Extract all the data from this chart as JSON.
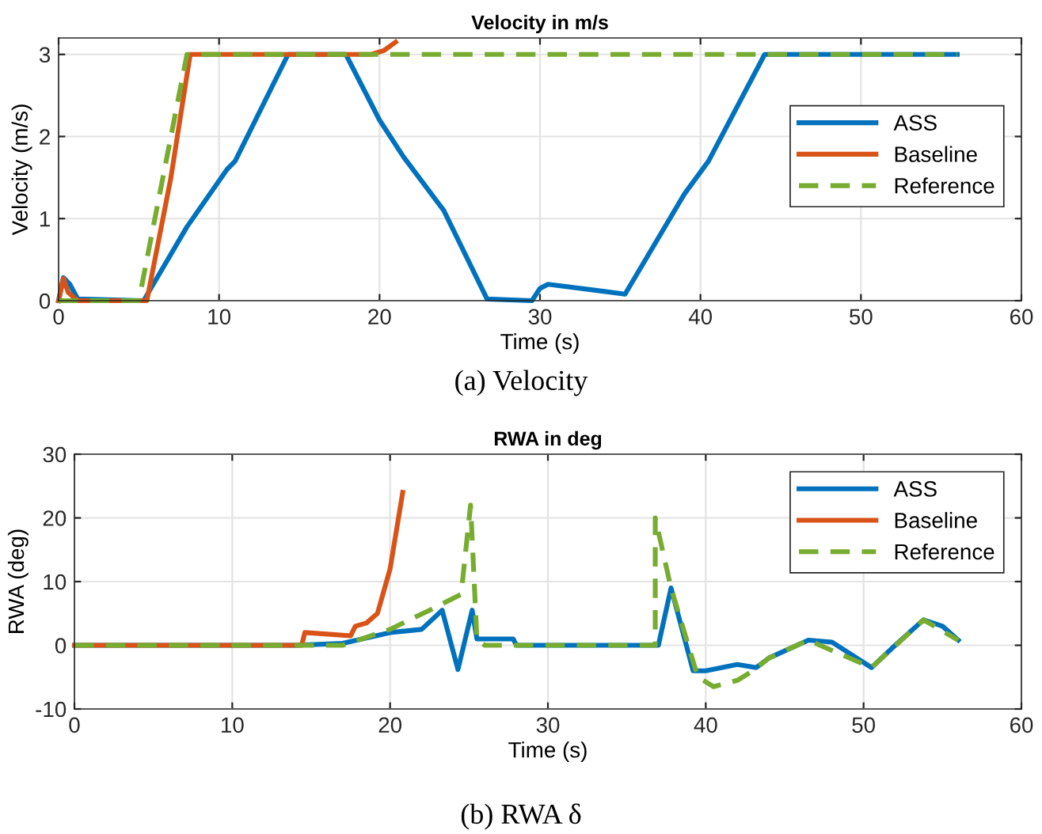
{
  "chart_data": [
    {
      "type": "line",
      "title": "Velocity in m/s",
      "xlabel": "Time (s)",
      "ylabel": "Velocity (m/s)",
      "xlim": [
        0,
        60
      ],
      "xticks": [
        0,
        10,
        20,
        30,
        40,
        50,
        60
      ],
      "ylim": [
        0,
        3.2
      ],
      "yticks": [
        0,
        1,
        2,
        3
      ],
      "grid": true,
      "legend": "right",
      "annotations": [
        "(a) Velocity"
      ],
      "series": [
        {
          "name": "ASS",
          "color": "#0072bd",
          "line_style": "solid",
          "x": [
            0,
            0.3,
            0.7,
            1.2,
            5.3,
            8,
            10.5,
            11,
            14.3,
            17.9,
            20,
            21.5,
            24,
            26.7,
            29.5,
            30,
            30.5,
            35.3,
            39,
            40.5,
            44,
            56
          ],
          "values": [
            0,
            0.28,
            0.2,
            0.02,
            0,
            0.9,
            1.6,
            1.7,
            3,
            3,
            2.2,
            1.75,
            1.1,
            0.02,
            0,
            0.15,
            0.2,
            0.08,
            1.3,
            1.7,
            3,
            3
          ]
        },
        {
          "name": "Baseline",
          "color": "#d95319",
          "line_style": "solid",
          "x": [
            0,
            0.3,
            0.6,
            1.2,
            5.5,
            7,
            8.2,
            19.5,
            20.3,
            21
          ],
          "values": [
            0,
            0.27,
            0.1,
            0,
            0,
            1.5,
            3,
            3,
            3.05,
            3.15
          ]
        },
        {
          "name": "Reference",
          "color": "#77ac30",
          "line_style": "dashed",
          "x": [
            0,
            5,
            8,
            56
          ],
          "values": [
            0,
            0,
            3,
            3
          ]
        }
      ]
    },
    {
      "type": "line",
      "title": "RWA in deg",
      "xlabel": "Time (s)",
      "ylabel": "RWA (deg)",
      "xlim": [
        0,
        60
      ],
      "xticks": [
        0,
        10,
        20,
        30,
        40,
        50,
        60
      ],
      "ylim": [
        -10,
        30
      ],
      "yticks": [
        -10,
        0,
        10,
        20,
        30
      ],
      "grid": true,
      "legend": "top right",
      "annotations": [
        "(b) RWA δ"
      ],
      "series": [
        {
          "name": "ASS",
          "color": "#0072bd",
          "line_style": "solid",
          "x": [
            0,
            14,
            17,
            20,
            22,
            23.3,
            24.3,
            25.2,
            25.5,
            27.8,
            28,
            37,
            37.8,
            39.2,
            40,
            42,
            43.2,
            44,
            46.5,
            48,
            50.5,
            52,
            53.8,
            55,
            56
          ],
          "values": [
            0,
            0,
            0.3,
            2,
            2.5,
            5.5,
            -3.8,
            5.5,
            1,
            1,
            0,
            0,
            9,
            -4,
            -4,
            -3,
            -3.5,
            -2,
            0.8,
            0.5,
            -3.5,
            0,
            4,
            3,
            0.8
          ]
        },
        {
          "name": "Baseline",
          "color": "#d95319",
          "line_style": "solid",
          "x": [
            0,
            14.4,
            14.6,
            17.5,
            17.8,
            18.5,
            19.2,
            20,
            20.8
          ],
          "values": [
            0,
            0,
            2,
            1.5,
            3,
            3.5,
            5,
            12,
            24
          ]
        },
        {
          "name": "Reference",
          "color": "#77ac30",
          "line_style": "dashed",
          "x": [
            0,
            17,
            20,
            22.5,
            24.5,
            25.1,
            25.5,
            26,
            36.8,
            36.8,
            37.8,
            39.5,
            40.5,
            42,
            43,
            44,
            46.5,
            50.5,
            53.8,
            56
          ],
          "values": [
            0,
            0,
            2.5,
            5.5,
            8,
            22,
            1,
            0,
            0,
            20,
            9,
            -5,
            -6.5,
            -5.5,
            -4,
            -2,
            0.8,
            -3.5,
            4,
            0.8
          ]
        }
      ]
    }
  ]
}
